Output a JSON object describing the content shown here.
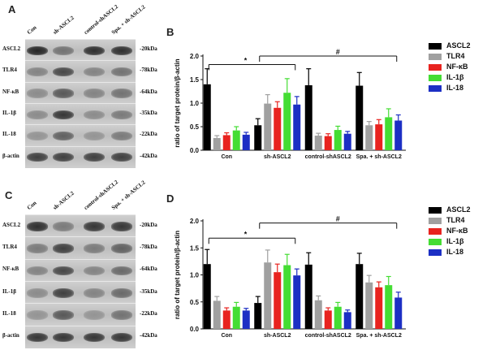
{
  "panels": {
    "A": "A",
    "B": "B",
    "C": "C",
    "D": "D"
  },
  "blot_top": {
    "lanes": [
      "Con",
      "sh-ASCL2",
      "control-shASCL2",
      "Spa. + sh-ASCL2"
    ],
    "rows": [
      {
        "protein": "ASCL2",
        "kda": "-20kDa",
        "intensity": [
          0.9,
          0.45,
          0.85,
          0.85
        ]
      },
      {
        "protein": "TLR4",
        "kda": "-78kDa",
        "intensity": [
          0.35,
          0.7,
          0.35,
          0.45
        ]
      },
      {
        "protein": "NF-κB",
        "kda": "-64kDa",
        "intensity": [
          0.3,
          0.6,
          0.35,
          0.45
        ]
      },
      {
        "protein": "IL-1β",
        "kda": "-35kDa",
        "intensity": [
          0.3,
          0.8,
          0.3,
          0.4
        ]
      },
      {
        "protein": "IL-18",
        "kda": "-22kDa",
        "intensity": [
          0.25,
          0.55,
          0.25,
          0.4
        ]
      },
      {
        "protein": "β-actin",
        "kda": "-42kDa",
        "intensity": [
          0.75,
          0.75,
          0.75,
          0.75
        ]
      }
    ]
  },
  "blot_bottom": {
    "lanes": [
      "Con",
      "sh-ASCL2",
      "control-shASCL2",
      "Spa. + sh-ASCL2"
    ],
    "rows": [
      {
        "protein": "ASCL2",
        "kda": "-20kDa",
        "intensity": [
          0.85,
          0.4,
          0.8,
          0.8
        ]
      },
      {
        "protein": "TLR4",
        "kda": "-78kDa",
        "intensity": [
          0.4,
          0.75,
          0.4,
          0.55
        ]
      },
      {
        "protein": "NF-κB",
        "kda": "-64kDa",
        "intensity": [
          0.35,
          0.7,
          0.35,
          0.5
        ]
      },
      {
        "protein": "IL-1β",
        "kda": "-35kDa",
        "intensity": [
          0.3,
          0.75,
          0.35,
          0.5
        ]
      },
      {
        "protein": "IL-18",
        "kda": "-22kDa",
        "intensity": [
          0.25,
          0.6,
          0.25,
          0.45
        ]
      },
      {
        "protein": "β-actin",
        "kda": "-42kDa",
        "intensity": [
          0.8,
          0.8,
          0.8,
          0.8
        ]
      }
    ]
  },
  "colors": {
    "ASCL2": "#000000",
    "TLR4": "#a0a0a0",
    "NF-κB": "#e8231f",
    "IL-1β": "#44dd33",
    "IL-18": "#1c2fc4"
  },
  "chart_data": [
    {
      "type": "bar",
      "title": "",
      "ylabel": "ratio of target protein/β-actin",
      "xlabel": "",
      "ylim": [
        0,
        2.0
      ],
      "yticks": [
        "0.0",
        "0.5",
        "1.0",
        "1.5",
        "2.0"
      ],
      "categories": [
        "Con",
        "sh-ASCL2",
        "control-shASCL2",
        "Spa. + sh-ASCL2"
      ],
      "series": [
        {
          "name": "ASCL2",
          "values": [
            1.4,
            0.53,
            1.38,
            1.37
          ],
          "errors": [
            0.33,
            0.14,
            0.35,
            0.28
          ]
        },
        {
          "name": "TLR4",
          "values": [
            0.26,
            0.99,
            0.31,
            0.53
          ],
          "errors": [
            0.05,
            0.19,
            0.05,
            0.08
          ]
        },
        {
          "name": "NF-κB",
          "values": [
            0.32,
            0.9,
            0.3,
            0.55
          ],
          "errors": [
            0.05,
            0.13,
            0.05,
            0.1
          ]
        },
        {
          "name": "IL-1β",
          "values": [
            0.42,
            1.22,
            0.43,
            0.7
          ],
          "errors": [
            0.08,
            0.3,
            0.08,
            0.18
          ]
        },
        {
          "name": "IL-18",
          "values": [
            0.33,
            0.97,
            0.35,
            0.63
          ],
          "errors": [
            0.05,
            0.17,
            0.05,
            0.12
          ]
        }
      ],
      "annotations": [
        "*",
        "#"
      ]
    },
    {
      "type": "bar",
      "title": "",
      "ylabel": "ratio of target protein/β-actin",
      "xlabel": "",
      "ylim": [
        0,
        2.0
      ],
      "yticks": [
        "0.0",
        "0.5",
        "1.0",
        "1.5",
        "2.0"
      ],
      "categories": [
        "Con",
        "sh-ASCL2",
        "control-shASCL2",
        "Spa. + sh-ASCL2"
      ],
      "series": [
        {
          "name": "ASCL2",
          "values": [
            1.2,
            0.48,
            1.19,
            1.2
          ],
          "errors": [
            0.27,
            0.12,
            0.22,
            0.2
          ]
        },
        {
          "name": "TLR4",
          "values": [
            0.52,
            1.23,
            0.53,
            0.86
          ],
          "errors": [
            0.08,
            0.23,
            0.08,
            0.13
          ]
        },
        {
          "name": "NF-κB",
          "values": [
            0.34,
            1.05,
            0.34,
            0.77
          ],
          "errors": [
            0.05,
            0.15,
            0.05,
            0.1
          ]
        },
        {
          "name": "IL-1β",
          "values": [
            0.41,
            1.18,
            0.41,
            0.81
          ],
          "errors": [
            0.08,
            0.2,
            0.08,
            0.16
          ]
        },
        {
          "name": "IL-18",
          "values": [
            0.34,
            0.99,
            0.31,
            0.58
          ],
          "errors": [
            0.04,
            0.12,
            0.04,
            0.1
          ]
        }
      ],
      "annotations": [
        "*",
        "#"
      ]
    }
  ]
}
